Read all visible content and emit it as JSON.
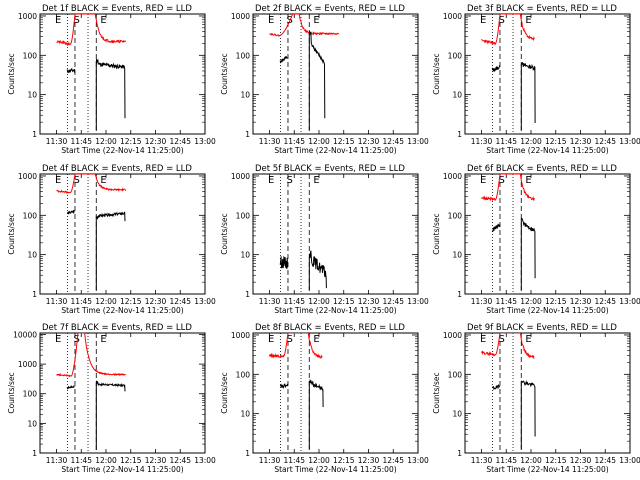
{
  "figure": {
    "title_suffix": "BLACK = Events, RED = LLD",
    "xlabel": "Start Time (22-Nov-14 11:25:00)",
    "ylabel": "Counts/sec",
    "xticks": [
      "11:30",
      "11:45",
      "12:00",
      "12:15",
      "12:30",
      "12:45",
      "13:00"
    ],
    "colors": {
      "events": "#000000",
      "lld": "#ff0000"
    }
  },
  "chart_data": [
    {
      "type": "line",
      "det": "Det 1f",
      "title": "Det 1f BLACK = Events, RED = LLD",
      "ytick_labels": [
        "1",
        "10",
        "100",
        "1000"
      ],
      "ylim_log10": [
        0,
        3.05
      ],
      "dotted_x": [
        11.6,
        24.1
      ],
      "dashed_x": [
        16.2,
        29.1
      ],
      "markers": [
        {
          "label": "E",
          "x": 6
        },
        {
          "label": "S",
          "x": 17.2
        },
        {
          "label": "E",
          "x": 33.5
        }
      ],
      "events": {
        "t0": 11.5,
        "t1": 16.2,
        "mean": [
          1.6,
          1.62
        ],
        "noise": 0.05,
        "seed": 11,
        "t2": 29.1,
        "t3": 46.5,
        "peak": 1.88,
        "decay": [
          1.78,
          1.7
        ],
        "end_drop": 1.3
      },
      "lld": {
        "pre_start": 5,
        "pre": [
          2.35,
          2.28
        ],
        "rise_at": 13.5,
        "high_start": 16.2,
        "high_end": 28.5,
        "high": 3.05,
        "decay_to": 2.35,
        "decay_rate": 0.45,
        "end": 47,
        "noise": 0.03,
        "seed": 21
      }
    },
    {
      "type": "line",
      "det": "Det 2f",
      "title": "Det 2f BLACK = Events, RED = LLD",
      "ytick_labels": [
        "1",
        "10",
        "100",
        "1000"
      ],
      "ylim_log10": [
        0,
        3.05
      ],
      "dotted_x": [
        11.6,
        24.1
      ],
      "dashed_x": [
        16.2,
        29.1
      ],
      "markers": [
        {
          "label": "E",
          "x": 6
        },
        {
          "label": "S",
          "x": 17.2
        },
        {
          "label": "E",
          "x": 33.5
        }
      ],
      "events": {
        "t0": 11.5,
        "t1": 16.2,
        "mean": [
          1.85,
          1.95
        ],
        "noise": 0.04,
        "seed": 12,
        "t2": 29.1,
        "t3": 38.5,
        "peak": 2.55,
        "decay": [
          2.35,
          1.8
        ],
        "end_drop": 1.4
      },
      "lld": {
        "pre_start": 5,
        "pre": [
          2.55,
          2.5
        ],
        "rise_at": 11,
        "high_start": 19,
        "high_end": 23,
        "high": 3.05,
        "decay_to": 2.55,
        "decay_rate": 0.5,
        "end": 47,
        "noise": 0.02,
        "seed": 22
      }
    },
    {
      "type": "line",
      "det": "Det 3f",
      "title": "Det 3f BLACK = Events, RED = LLD",
      "ytick_labels": [
        "1",
        "10",
        "100",
        "1000"
      ],
      "ylim_log10": [
        0,
        3.05
      ],
      "dotted_x": [
        11.6,
        24.1
      ],
      "dashed_x": [
        16.2,
        29.1
      ],
      "markers": [
        {
          "label": "E",
          "x": 6
        },
        {
          "label": "S",
          "x": 17.2
        },
        {
          "label": "E",
          "x": 33.5
        }
      ],
      "events": {
        "t0": 11.5,
        "t1": 16.2,
        "mean": [
          1.62,
          1.7
        ],
        "noise": 0.05,
        "seed": 13,
        "t2": 29.1,
        "t3": 37.5,
        "peak": 1.82,
        "decay": [
          1.76,
          1.68
        ],
        "end_drop": 1.4
      },
      "lld": {
        "pre_start": 5,
        "pre": [
          2.38,
          2.3
        ],
        "rise_at": 13.5,
        "high_start": 16.2,
        "high_end": 28.5,
        "high": 3.05,
        "decay_to": 2.4,
        "decay_rate": 0.45,
        "end": 37,
        "noise": 0.03,
        "seed": 23
      }
    },
    {
      "type": "line",
      "det": "Det 4f",
      "title": "Det 4f BLACK = Events, RED = LLD",
      "ytick_labels": [
        "1",
        "10",
        "100",
        "1000"
      ],
      "ylim_log10": [
        0,
        3.05
      ],
      "dotted_x": [
        11.6,
        24.1
      ],
      "dashed_x": [
        16.2,
        29.1
      ],
      "markers": [
        {
          "label": "E",
          "x": 6
        },
        {
          "label": "S",
          "x": 17.2
        },
        {
          "label": "E",
          "x": 33.5
        }
      ],
      "events": {
        "t0": 11.5,
        "t1": 16.2,
        "mean": [
          2.05,
          2.1
        ],
        "noise": 0.03,
        "seed": 14,
        "t2": 29.1,
        "t3": 46.5,
        "peak": 1.95,
        "decay": [
          1.98,
          2.05
        ],
        "end_drop": 0.2
      },
      "lld": {
        "pre_start": 5,
        "pre": [
          2.62,
          2.58
        ],
        "rise_at": 13.5,
        "high_start": 16.2,
        "high_end": 28.5,
        "high": 3.05,
        "decay_to": 2.65,
        "decay_rate": 0.45,
        "end": 47,
        "noise": 0.02,
        "seed": 24
      }
    },
    {
      "type": "line",
      "det": "Det 5f",
      "title": "Det 5f BLACK = Events, RED = LLD",
      "ytick_labels": [
        "1",
        "10",
        "100",
        "1000"
      ],
      "ylim_log10": [
        0,
        3.05
      ],
      "dotted_x": [
        11.6,
        24.1
      ],
      "dashed_x": [
        16.2,
        29.1
      ],
      "markers": [
        {
          "label": "E",
          "x": 6
        },
        {
          "label": "S",
          "x": 17.2
        },
        {
          "label": "E",
          "x": 33.5
        }
      ],
      "events": {
        "t0": 11.5,
        "t1": 16.2,
        "mean": [
          0.82,
          0.78
        ],
        "noise": 0.15,
        "seed": 15,
        "t2": 29.1,
        "t3": 39.5,
        "peak": 1.02,
        "decay": [
          0.95,
          0.5
        ],
        "end_drop": 0.35
      },
      "lld": null
    },
    {
      "type": "line",
      "det": "Det 6f",
      "title": "Det 6f BLACK = Events, RED = LLD",
      "ytick_labels": [
        "1",
        "10",
        "100",
        "1000"
      ],
      "ylim_log10": [
        0,
        3.05
      ],
      "dotted_x": [
        11.6,
        24.1
      ],
      "dashed_x": [
        16.2,
        29.1
      ],
      "markers": [
        {
          "label": "E",
          "x": 6
        },
        {
          "label": "S",
          "x": 17.2
        },
        {
          "label": "E",
          "x": 33.5
        }
      ],
      "events": {
        "t0": 11.5,
        "t1": 16.2,
        "mean": [
          1.62,
          1.75
        ],
        "noise": 0.05,
        "seed": 16,
        "t2": 29.1,
        "t3": 37.5,
        "peak": 1.9,
        "decay": [
          1.82,
          1.6
        ],
        "end_drop": 1.2
      },
      "lld": {
        "pre_start": 5,
        "pre": [
          2.45,
          2.4
        ],
        "rise_at": 13.5,
        "high_start": 16.2,
        "high_end": 28.5,
        "high": 3.05,
        "decay_to": 2.4,
        "decay_rate": 0.45,
        "end": 37,
        "noise": 0.03,
        "seed": 26
      }
    },
    {
      "type": "line",
      "det": "Det 7f",
      "title": "Det 7f BLACK = Events, RED = LLD",
      "ytick_labels": [
        "1",
        "10",
        "100",
        "1000",
        "10000"
      ],
      "ylim_log10": [
        0,
        4.05
      ],
      "dotted_x": [
        11.6,
        24.1
      ],
      "dashed_x": [
        16.2,
        29.1
      ],
      "markers": [
        {
          "label": "E",
          "x": 6
        },
        {
          "label": "S",
          "x": 17.2
        },
        {
          "label": "E",
          "x": 33.5
        }
      ],
      "events": {
        "t0": 11.5,
        "t1": 16.2,
        "mean": [
          2.2,
          2.25
        ],
        "noise": 0.03,
        "seed": 17,
        "t2": 29.1,
        "t3": 46.5,
        "peak": 2.38,
        "decay": [
          2.32,
          2.28
        ],
        "end_drop": 0.2
      },
      "lld": {
        "pre_start": 5,
        "pre": [
          2.65,
          2.6
        ],
        "rise_at": 14,
        "high_start": 18,
        "high_end": 22,
        "high": 4.05,
        "decay_to": 2.65,
        "decay_rate": 0.35,
        "end": 47,
        "noise": 0.02,
        "seed": 27
      }
    },
    {
      "type": "line",
      "det": "Det 8f",
      "title": "Det 8f BLACK = Events, RED = LLD",
      "ytick_labels": [
        "1",
        "10",
        "100",
        "1000"
      ],
      "ylim_log10": [
        0,
        3.05
      ],
      "dotted_x": [
        11.6,
        24.1
      ],
      "dashed_x": [
        16.2,
        29.1
      ],
      "markers": [
        {
          "label": "E",
          "x": 6
        },
        {
          "label": "S",
          "x": 17.2
        },
        {
          "label": "E",
          "x": 33.5
        }
      ],
      "events": {
        "t0": 11.5,
        "t1": 16.2,
        "mean": [
          1.68,
          1.72
        ],
        "noise": 0.05,
        "seed": 18,
        "t2": 29.1,
        "t3": 37.5,
        "peak": 1.82,
        "decay": [
          1.8,
          1.62
        ],
        "end_drop": 0.45
      },
      "lld": {
        "pre_start": 5,
        "pre": [
          2.48,
          2.45
        ],
        "rise_at": 13.5,
        "high_start": 16.2,
        "high_end": 28.5,
        "high": 3.05,
        "decay_to": 2.42,
        "decay_rate": 0.45,
        "end": 37,
        "noise": 0.03,
        "seed": 28
      }
    },
    {
      "type": "line",
      "det": "Det 9f",
      "title": "Det 9f BLACK = Events, RED = LLD",
      "ytick_labels": [
        "1",
        "10",
        "100",
        "1000"
      ],
      "ylim_log10": [
        0,
        3.05
      ],
      "dotted_x": [
        11.6,
        24.1
      ],
      "dashed_x": [
        16.2,
        29.1
      ],
      "markers": [
        {
          "label": "E",
          "x": 6
        },
        {
          "label": "S",
          "x": 17.2
        },
        {
          "label": "E",
          "x": 33.5
        }
      ],
      "events": {
        "t0": 11.5,
        "t1": 16.2,
        "mean": [
          1.65,
          1.68
        ],
        "noise": 0.05,
        "seed": 19,
        "t2": 29.1,
        "t3": 37.5,
        "peak": 1.85,
        "decay": [
          1.8,
          1.72
        ],
        "end_drop": 1.3
      },
      "lld": {
        "pre_start": 5,
        "pre": [
          2.55,
          2.5
        ],
        "rise_at": 13.5,
        "high_start": 16.2,
        "high_end": 28.5,
        "high": 3.05,
        "decay_to": 2.42,
        "decay_rate": 0.45,
        "end": 37,
        "noise": 0.03,
        "seed": 29
      }
    }
  ]
}
